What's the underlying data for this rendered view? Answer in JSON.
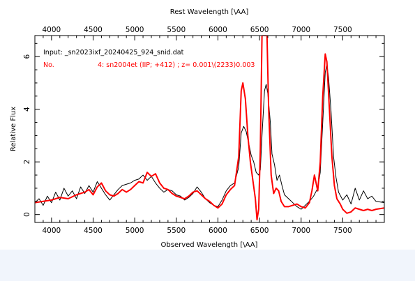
{
  "chart_data": {
    "type": "line",
    "x_label": "Observed Wavelength [\\AA]",
    "top_x_label": "Rest Wavelength [\\AA]",
    "y_label": "Relative Flux",
    "xlim": [
      3800,
      8000
    ],
    "ylim": [
      -0.3,
      6.8
    ],
    "bottom_x_ticks": [
      4000,
      4500,
      5000,
      5500,
      6000,
      6500,
      7000,
      7500
    ],
    "top_x_ticks": [
      4000,
      4500,
      5000,
      5500,
      6000,
      6500,
      7000,
      7500
    ],
    "y_ticks": [
      0,
      2,
      4,
      6
    ],
    "annotation_input": "Input: _sn2023ixf_20240425_924_snid.dat",
    "annotation_no_label": "No.",
    "annotation_match": "4: sn2004et (IIP; +412) ; z= 0.001\\(2233)0.003",
    "series": [
      {
        "color": "#000000",
        "points": [
          [
            3800,
            0.45
          ],
          [
            3850,
            0.6
          ],
          [
            3900,
            0.35
          ],
          [
            3950,
            0.7
          ],
          [
            4000,
            0.45
          ],
          [
            4050,
            0.85
          ],
          [
            4100,
            0.55
          ],
          [
            4150,
            1.0
          ],
          [
            4200,
            0.7
          ],
          [
            4250,
            0.9
          ],
          [
            4300,
            0.6
          ],
          [
            4350,
            1.05
          ],
          [
            4400,
            0.8
          ],
          [
            4450,
            1.1
          ],
          [
            4500,
            0.85
          ],
          [
            4550,
            1.25
          ],
          [
            4600,
            1.0
          ],
          [
            4650,
            0.75
          ],
          [
            4700,
            0.55
          ],
          [
            4750,
            0.75
          ],
          [
            4800,
            0.95
          ],
          [
            4850,
            1.1
          ],
          [
            4900,
            1.15
          ],
          [
            4950,
            1.2
          ],
          [
            5000,
            1.3
          ],
          [
            5050,
            1.35
          ],
          [
            5100,
            1.5
          ],
          [
            5150,
            1.3
          ],
          [
            5200,
            1.45
          ],
          [
            5250,
            1.2
          ],
          [
            5300,
            1.0
          ],
          [
            5350,
            0.85
          ],
          [
            5400,
            0.95
          ],
          [
            5450,
            0.9
          ],
          [
            5500,
            0.75
          ],
          [
            5550,
            0.7
          ],
          [
            5600,
            0.55
          ],
          [
            5650,
            0.65
          ],
          [
            5700,
            0.8
          ],
          [
            5750,
            1.05
          ],
          [
            5800,
            0.85
          ],
          [
            5850,
            0.6
          ],
          [
            5900,
            0.45
          ],
          [
            5950,
            0.35
          ],
          [
            6000,
            0.3
          ],
          [
            6050,
            0.55
          ],
          [
            6100,
            0.9
          ],
          [
            6150,
            1.1
          ],
          [
            6200,
            1.2
          ],
          [
            6250,
            1.8
          ],
          [
            6280,
            3.1
          ],
          [
            6310,
            3.35
          ],
          [
            6340,
            3.15
          ],
          [
            6370,
            2.7
          ],
          [
            6400,
            2.25
          ],
          [
            6430,
            2.0
          ],
          [
            6460,
            1.6
          ],
          [
            6490,
            1.5
          ],
          [
            6510,
            1.7
          ],
          [
            6530,
            3.0
          ],
          [
            6560,
            4.7
          ],
          [
            6580,
            4.95
          ],
          [
            6600,
            4.6
          ],
          [
            6630,
            3.5
          ],
          [
            6650,
            2.3
          ],
          [
            6680,
            1.9
          ],
          [
            6710,
            1.3
          ],
          [
            6740,
            1.5
          ],
          [
            6770,
            1.1
          ],
          [
            6800,
            0.75
          ],
          [
            6850,
            0.6
          ],
          [
            6900,
            0.45
          ],
          [
            6950,
            0.3
          ],
          [
            7000,
            0.2
          ],
          [
            7050,
            0.35
          ],
          [
            7100,
            0.5
          ],
          [
            7150,
            0.7
          ],
          [
            7200,
            1.0
          ],
          [
            7230,
            1.6
          ],
          [
            7260,
            3.5
          ],
          [
            7290,
            5.4
          ],
          [
            7310,
            5.7
          ],
          [
            7330,
            5.2
          ],
          [
            7360,
            3.9
          ],
          [
            7390,
            2.2
          ],
          [
            7420,
            1.4
          ],
          [
            7450,
            0.85
          ],
          [
            7500,
            0.55
          ],
          [
            7550,
            0.75
          ],
          [
            7600,
            0.4
          ],
          [
            7650,
            1.0
          ],
          [
            7700,
            0.55
          ],
          [
            7750,
            0.9
          ],
          [
            7800,
            0.6
          ],
          [
            7850,
            0.7
          ],
          [
            7900,
            0.5
          ],
          [
            8000,
            0.45
          ]
        ]
      },
      {
        "color": "#ff0000",
        "points": [
          [
            3800,
            0.45
          ],
          [
            3900,
            0.5
          ],
          [
            4000,
            0.55
          ],
          [
            4100,
            0.65
          ],
          [
            4200,
            0.6
          ],
          [
            4300,
            0.75
          ],
          [
            4400,
            0.85
          ],
          [
            4450,
            0.95
          ],
          [
            4500,
            0.75
          ],
          [
            4550,
            1.05
          ],
          [
            4600,
            1.2
          ],
          [
            4650,
            0.9
          ],
          [
            4700,
            0.75
          ],
          [
            4750,
            0.7
          ],
          [
            4800,
            0.8
          ],
          [
            4850,
            0.95
          ],
          [
            4900,
            0.85
          ],
          [
            4950,
            0.95
          ],
          [
            5000,
            1.1
          ],
          [
            5050,
            1.25
          ],
          [
            5100,
            1.2
          ],
          [
            5150,
            1.6
          ],
          [
            5200,
            1.45
          ],
          [
            5250,
            1.55
          ],
          [
            5300,
            1.2
          ],
          [
            5350,
            1.0
          ],
          [
            5400,
            0.95
          ],
          [
            5450,
            0.8
          ],
          [
            5500,
            0.7
          ],
          [
            5550,
            0.65
          ],
          [
            5600,
            0.6
          ],
          [
            5650,
            0.7
          ],
          [
            5700,
            0.85
          ],
          [
            5750,
            0.9
          ],
          [
            5800,
            0.75
          ],
          [
            5850,
            0.6
          ],
          [
            5900,
            0.5
          ],
          [
            5950,
            0.35
          ],
          [
            6000,
            0.25
          ],
          [
            6050,
            0.4
          ],
          [
            6100,
            0.75
          ],
          [
            6150,
            0.95
          ],
          [
            6200,
            1.1
          ],
          [
            6250,
            2.2
          ],
          [
            6280,
            4.7
          ],
          [
            6300,
            5.0
          ],
          [
            6330,
            4.4
          ],
          [
            6360,
            3.0
          ],
          [
            6390,
            2.0
          ],
          [
            6420,
            1.3
          ],
          [
            6450,
            0.6
          ],
          [
            6470,
            -0.2
          ],
          [
            6490,
            0.2
          ],
          [
            6510,
            2.5
          ],
          [
            6530,
            6.8
          ],
          [
            6560,
            6.8
          ],
          [
            6590,
            6.8
          ],
          [
            6610,
            4.0
          ],
          [
            6640,
            1.5
          ],
          [
            6670,
            0.8
          ],
          [
            6700,
            1.0
          ],
          [
            6730,
            0.9
          ],
          [
            6760,
            0.5
          ],
          [
            6800,
            0.3
          ],
          [
            6850,
            0.3
          ],
          [
            6900,
            0.35
          ],
          [
            6950,
            0.4
          ],
          [
            7000,
            0.3
          ],
          [
            7050,
            0.25
          ],
          [
            7100,
            0.45
          ],
          [
            7130,
            0.9
          ],
          [
            7160,
            1.5
          ],
          [
            7180,
            1.2
          ],
          [
            7200,
            0.9
          ],
          [
            7230,
            2.0
          ],
          [
            7260,
            4.5
          ],
          [
            7290,
            6.1
          ],
          [
            7310,
            5.8
          ],
          [
            7340,
            4.0
          ],
          [
            7370,
            2.2
          ],
          [
            7400,
            1.1
          ],
          [
            7430,
            0.6
          ],
          [
            7470,
            0.4
          ],
          [
            7500,
            0.2
          ],
          [
            7550,
            0.05
          ],
          [
            7600,
            0.1
          ],
          [
            7650,
            0.25
          ],
          [
            7700,
            0.2
          ],
          [
            7750,
            0.15
          ],
          [
            7800,
            0.2
          ],
          [
            7850,
            0.15
          ],
          [
            7900,
            0.2
          ],
          [
            8000,
            0.25
          ]
        ]
      }
    ]
  }
}
